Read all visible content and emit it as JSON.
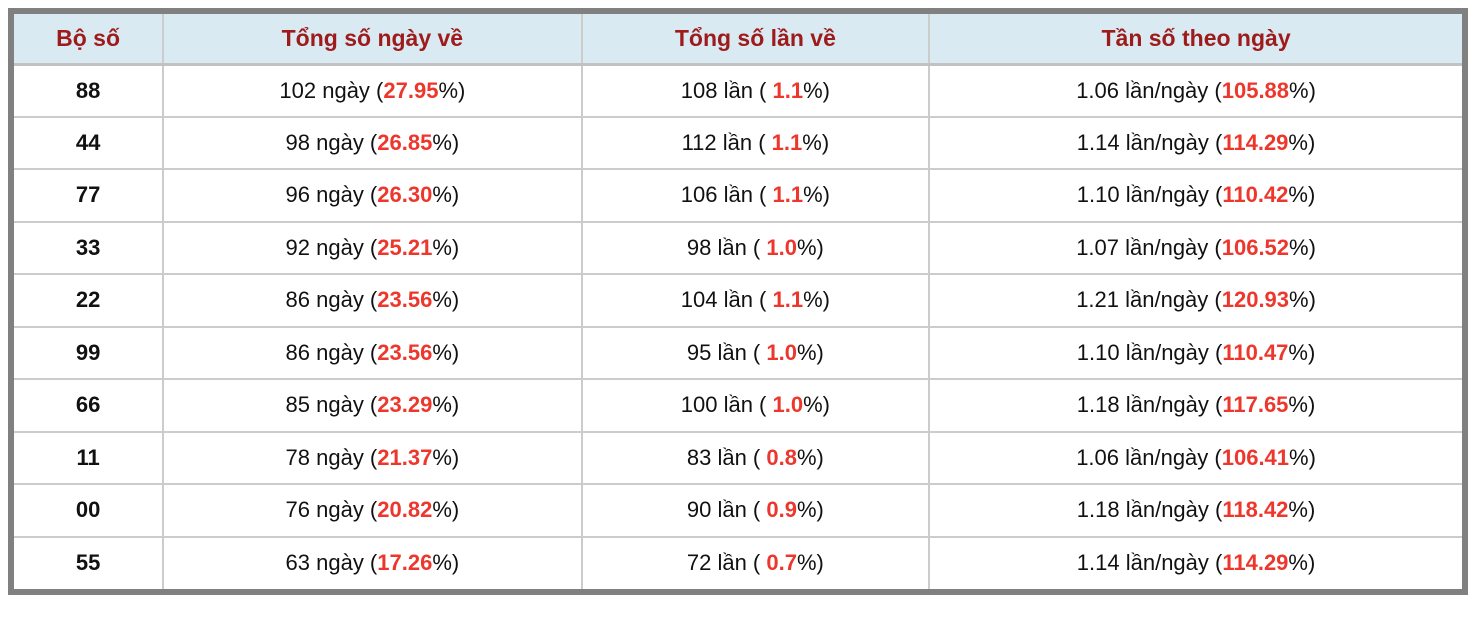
{
  "colors": {
    "header_bg": "#daeaf2",
    "header_text": "#9e1b1b",
    "highlight_red": "#ee372c",
    "frame_gray": "#808080",
    "divider_gray": "#cccccc"
  },
  "table": {
    "headers": [
      "Bộ số",
      "Tổng số ngày về",
      "Tổng số lần về",
      "Tần số theo ngày"
    ],
    "rows": [
      {
        "pair": "88",
        "days_prefix": "102 ngày (",
        "days_value": "27.95",
        "days_suffix": "%)",
        "times_prefix": "108 lần ( ",
        "times_value": "1.1",
        "times_suffix": "%)",
        "freq_prefix": "1.06 lần/ngày (",
        "freq_value": "105.88",
        "freq_suffix": "%)"
      },
      {
        "pair": "44",
        "days_prefix": "98 ngày (",
        "days_value": "26.85",
        "days_suffix": "%)",
        "times_prefix": "112 lần ( ",
        "times_value": "1.1",
        "times_suffix": "%)",
        "freq_prefix": "1.14 lần/ngày (",
        "freq_value": "114.29",
        "freq_suffix": "%)"
      },
      {
        "pair": "77",
        "days_prefix": "96 ngày (",
        "days_value": "26.30",
        "days_suffix": "%)",
        "times_prefix": "106 lần ( ",
        "times_value": "1.1",
        "times_suffix": "%)",
        "freq_prefix": "1.10 lần/ngày (",
        "freq_value": "110.42",
        "freq_suffix": "%)"
      },
      {
        "pair": "33",
        "days_prefix": "92 ngày (",
        "days_value": "25.21",
        "days_suffix": "%)",
        "times_prefix": "98 lần ( ",
        "times_value": "1.0",
        "times_suffix": "%)",
        "freq_prefix": "1.07 lần/ngày (",
        "freq_value": "106.52",
        "freq_suffix": "%)"
      },
      {
        "pair": "22",
        "days_prefix": "86 ngày (",
        "days_value": "23.56",
        "days_suffix": "%)",
        "times_prefix": "104 lần ( ",
        "times_value": "1.1",
        "times_suffix": "%)",
        "freq_prefix": "1.21 lần/ngày (",
        "freq_value": "120.93",
        "freq_suffix": "%)"
      },
      {
        "pair": "99",
        "days_prefix": "86 ngày (",
        "days_value": "23.56",
        "days_suffix": "%)",
        "times_prefix": "95 lần ( ",
        "times_value": "1.0",
        "times_suffix": "%)",
        "freq_prefix": "1.10 lần/ngày (",
        "freq_value": "110.47",
        "freq_suffix": "%)"
      },
      {
        "pair": "66",
        "days_prefix": "85 ngày (",
        "days_value": "23.29",
        "days_suffix": "%)",
        "times_prefix": "100 lần ( ",
        "times_value": "1.0",
        "times_suffix": "%)",
        "freq_prefix": "1.18 lần/ngày (",
        "freq_value": "117.65",
        "freq_suffix": "%)"
      },
      {
        "pair": "11",
        "days_prefix": "78 ngày (",
        "days_value": "21.37",
        "days_suffix": "%)",
        "times_prefix": "83 lần ( ",
        "times_value": "0.8",
        "times_suffix": "%)",
        "freq_prefix": "1.06 lần/ngày (",
        "freq_value": "106.41",
        "freq_suffix": "%)"
      },
      {
        "pair": "00",
        "days_prefix": "76 ngày (",
        "days_value": "20.82",
        "days_suffix": "%)",
        "times_prefix": "90 lần ( ",
        "times_value": "0.9",
        "times_suffix": "%)",
        "freq_prefix": "1.18 lần/ngày (",
        "freq_value": "118.42",
        "freq_suffix": "%)"
      },
      {
        "pair": "55",
        "days_prefix": "63 ngày (",
        "days_value": "17.26",
        "days_suffix": "%)",
        "times_prefix": "72 lần ( ",
        "times_value": "0.7",
        "times_suffix": "%)",
        "freq_prefix": "1.14 lần/ngày (",
        "freq_value": "114.29",
        "freq_suffix": "%)"
      }
    ]
  },
  "chart_data": {
    "type": "table",
    "title": "",
    "columns": [
      "Bộ số",
      "Tổng số ngày về",
      "Tổng số lần về",
      "Tần số theo ngày"
    ],
    "rows": [
      [
        "88",
        "102 ngày (27.95%)",
        "108 lần ( 1.1%)",
        "1.06 lần/ngày (105.88%)"
      ],
      [
        "44",
        "98 ngày (26.85%)",
        "112 lần ( 1.1%)",
        "1.14 lần/ngày (114.29%)"
      ],
      [
        "77",
        "96 ngày (26.30%)",
        "106 lần ( 1.1%)",
        "1.10 lần/ngày (110.42%)"
      ],
      [
        "33",
        "92 ngày (25.21%)",
        "98 lần ( 1.0%)",
        "1.07 lần/ngày (106.52%)"
      ],
      [
        "22",
        "86 ngày (23.56%)",
        "104 lần ( 1.1%)",
        "1.21 lần/ngày (120.93%)"
      ],
      [
        "99",
        "86 ngày (23.56%)",
        "95 lần ( 1.0%)",
        "1.10 lần/ngày (110.47%)"
      ],
      [
        "66",
        "85 ngày (23.29%)",
        "100 lần ( 1.0%)",
        "1.18 lần/ngày (117.65%)"
      ],
      [
        "11",
        "78 ngày (21.37%)",
        "83 lần ( 0.8%)",
        "1.06 lần/ngày (106.41%)"
      ],
      [
        "00",
        "76 ngày (20.82%)",
        "90 lần ( 0.9%)",
        "1.18 lần/ngày (118.42%)"
      ],
      [
        "55",
        "63 ngày (17.26%)",
        "72 lần ( 0.7%)",
        "1.14 lần/ngày (114.29%)"
      ]
    ],
    "series": [
      {
        "name": "days",
        "values": [
          102,
          98,
          96,
          92,
          86,
          86,
          85,
          78,
          76,
          63
        ]
      },
      {
        "name": "days_pct",
        "values": [
          27.95,
          26.85,
          26.3,
          25.21,
          23.56,
          23.56,
          23.29,
          21.37,
          20.82,
          17.26
        ]
      },
      {
        "name": "times",
        "values": [
          108,
          112,
          106,
          98,
          104,
          95,
          100,
          83,
          90,
          72
        ]
      },
      {
        "name": "times_pct",
        "values": [
          1.1,
          1.1,
          1.1,
          1.0,
          1.1,
          1.0,
          1.0,
          0.8,
          0.9,
          0.7
        ]
      },
      {
        "name": "freq_per_day",
        "values": [
          1.06,
          1.14,
          1.1,
          1.07,
          1.21,
          1.1,
          1.18,
          1.06,
          1.18,
          1.14
        ]
      },
      {
        "name": "freq_pct",
        "values": [
          105.88,
          114.29,
          110.42,
          106.52,
          120.93,
          110.47,
          117.65,
          106.41,
          118.42,
          114.29
        ]
      }
    ],
    "categories": [
      "88",
      "44",
      "77",
      "33",
      "22",
      "99",
      "66",
      "11",
      "00",
      "55"
    ]
  }
}
